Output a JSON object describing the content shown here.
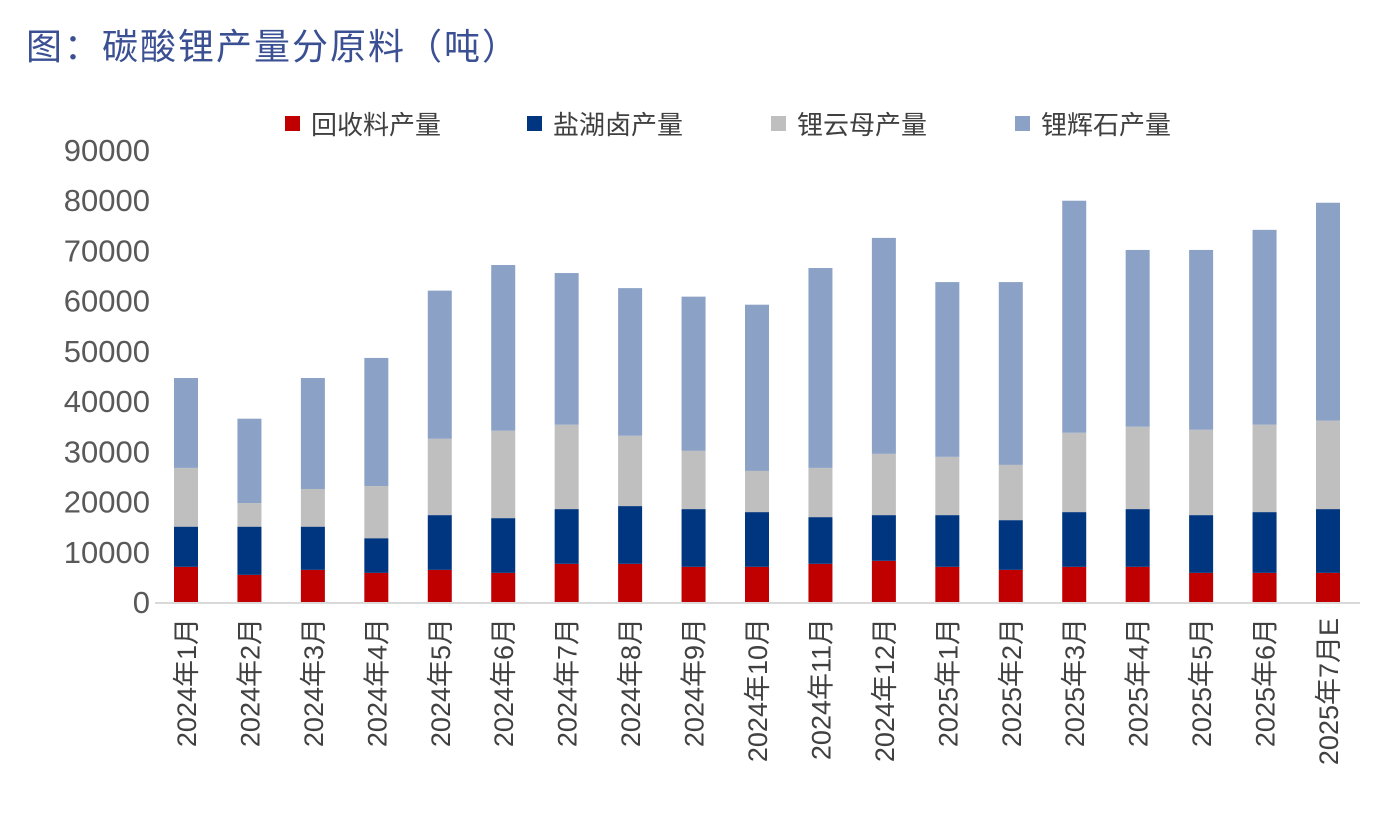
{
  "chart_data": {
    "type": "bar",
    "stacked": true,
    "title": "图：碳酸锂产量分原料（吨）",
    "xlabel": "",
    "ylabel": "",
    "ylim": [
      0,
      90000
    ],
    "yticks": [
      0,
      10000,
      20000,
      30000,
      40000,
      50000,
      60000,
      70000,
      80000,
      90000
    ],
    "grid": false,
    "legend_position": "top",
    "categories": [
      "2024年1月",
      "2024年2月",
      "2024年3月",
      "2024年4月",
      "2024年5月",
      "2024年6月",
      "2024年7月",
      "2024年8月",
      "2024年9月",
      "2024年10月",
      "2024年11月",
      "2024年12月",
      "2025年1月",
      "2025年2月",
      "2025年3月",
      "2025年4月",
      "2025年5月",
      "2025年6月",
      "2025年7月E"
    ],
    "series": [
      {
        "name": "回收料产量",
        "color": "#c00000",
        "values": [
          7000,
          5400,
          6400,
          5800,
          6400,
          5800,
          7600,
          7600,
          7000,
          7000,
          7600,
          8200,
          7000,
          6400,
          7000,
          7000,
          5800,
          5800,
          5800
        ]
      },
      {
        "name": "盐湖卤产量",
        "color": "#003580",
        "values": [
          8000,
          9600,
          8600,
          6900,
          10900,
          10900,
          10900,
          11500,
          11500,
          10900,
          9300,
          9100,
          10300,
          9900,
          10900,
          11500,
          11500,
          12100,
          12700
        ]
      },
      {
        "name": "锂云母产量",
        "color": "#bfbfbf",
        "values": [
          11700,
          4700,
          7500,
          10400,
          15200,
          17400,
          16800,
          14000,
          11600,
          8200,
          9800,
          12200,
          11600,
          11000,
          15800,
          16400,
          17000,
          17400,
          17600
        ]
      },
      {
        "name": "锂辉石产量",
        "color": "#8ba2c6",
        "values": [
          17900,
          16800,
          22100,
          25500,
          29500,
          33000,
          30200,
          29400,
          30700,
          33100,
          39800,
          43000,
          34800,
          36400,
          46200,
          35200,
          35800,
          38800,
          43400
        ]
      }
    ]
  }
}
